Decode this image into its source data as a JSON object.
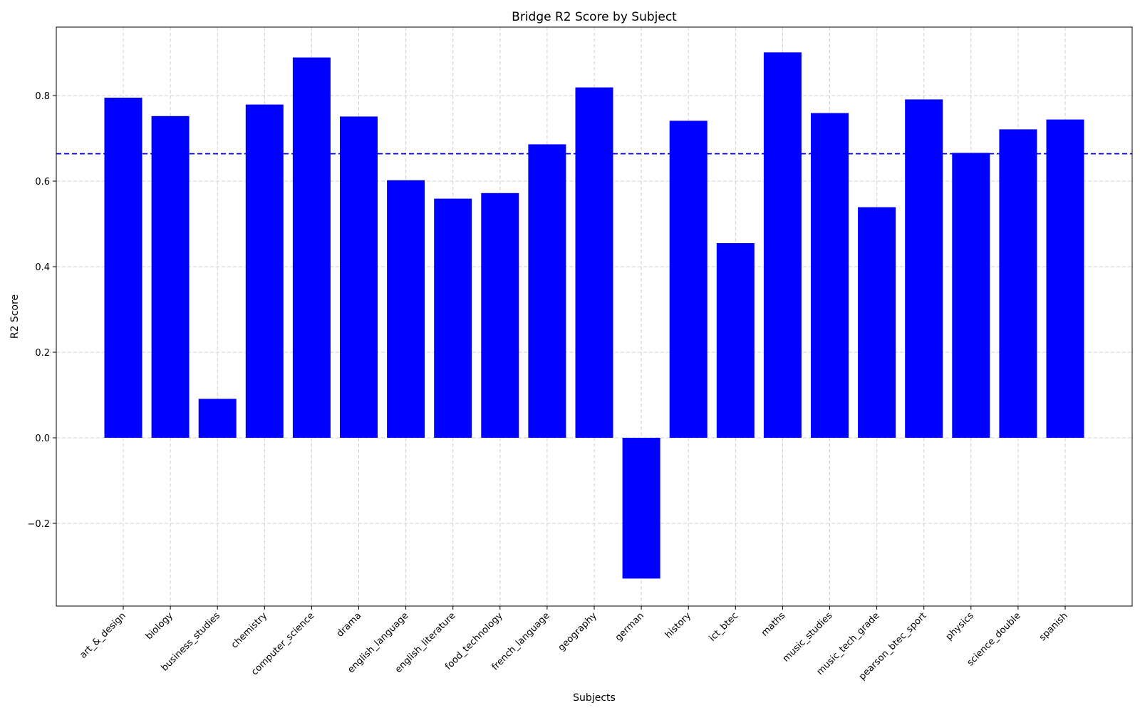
{
  "chart_data": {
    "type": "bar",
    "title": "Bridge R2 Score by Subject",
    "xlabel": "Subjects",
    "ylabel": "R2 Score",
    "categories": [
      "art_&_design",
      "biology",
      "business_studies",
      "chemistry",
      "computer_science",
      "drama",
      "english_language",
      "english_literature",
      "food_technology",
      "french_language",
      "geography",
      "german",
      "history",
      "ict_btec",
      "maths",
      "music_studies",
      "music_tech_grade",
      "pearson_btec_sport",
      "physics",
      "science_double",
      "spanish"
    ],
    "values": [
      0.795,
      0.752,
      0.091,
      0.779,
      0.889,
      0.751,
      0.602,
      0.559,
      0.572,
      0.686,
      0.819,
      -0.329,
      0.741,
      0.455,
      0.901,
      0.759,
      0.539,
      0.791,
      0.666,
      0.721,
      0.744
    ],
    "reference_line": 0.664,
    "ylim": [
      -0.39,
      0.96
    ],
    "yticks": [
      -0.2,
      0.0,
      0.2,
      0.4,
      0.6,
      0.8
    ],
    "ytick_labels": [
      "−0.2",
      "0.0",
      "0.2",
      "0.4",
      "0.6",
      "0.8"
    ],
    "grid": true,
    "bar_color": "#0000ff",
    "reference_line_color": "#0000ff"
  }
}
